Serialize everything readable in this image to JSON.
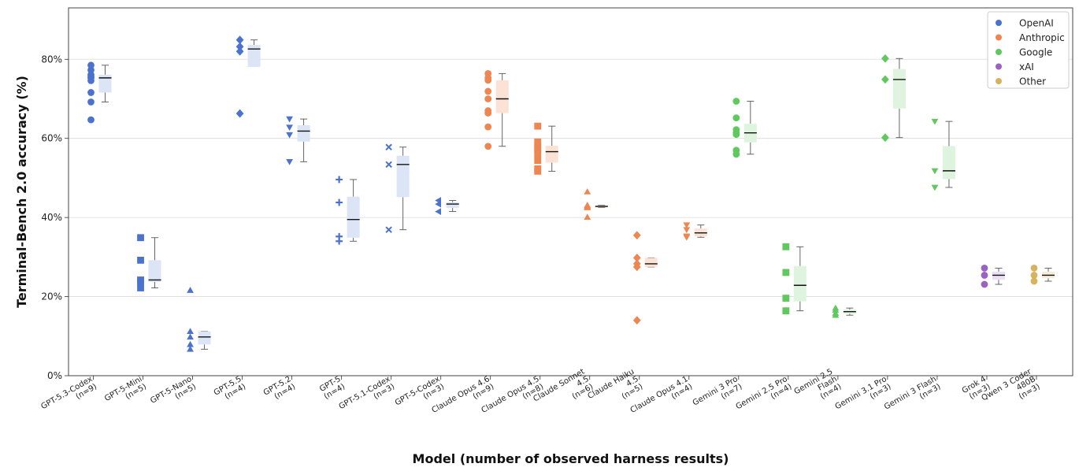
{
  "chart_data": {
    "type": "box+strip",
    "xlabel": "Model (number of observed harness results)",
    "ylabel": "Terminal-Bench 2.0 accuracy (%)",
    "ylim": [
      0,
      93
    ],
    "yticks": [
      0,
      20,
      40,
      60,
      80
    ],
    "ytick_labels": [
      "0%",
      "20%",
      "40%",
      "60%",
      "80%"
    ],
    "grid": "horizontal",
    "legend_position": "top-right",
    "legend": [
      {
        "name": "OpenAI",
        "color": "#4c72d0"
      },
      {
        "name": "Anthropic",
        "color": "#ed8650"
      },
      {
        "name": "Google",
        "color": "#5fc95d"
      },
      {
        "name": "xAI",
        "color": "#9b62c4"
      },
      {
        "name": "Other",
        "color": "#d7b35f"
      }
    ],
    "groups": [
      {
        "tick": [
          "GPT-5.3-Codex",
          "(n=9)"
        ],
        "vendor": "OpenAI",
        "marker": "circle",
        "values": [
          78.5,
          77.3,
          76.1,
          75.3,
          74.6,
          71.6,
          69.2,
          64.7,
          75.7
        ]
      },
      {
        "tick": [
          "GPT-5-Mini",
          "(n=5)"
        ],
        "vendor": "OpenAI",
        "marker": "square",
        "values": [
          34.9,
          29.2,
          24.2,
          23.7,
          22.2
        ]
      },
      {
        "tick": [
          "GPT-5-Nano",
          "(n=5)"
        ],
        "vendor": "OpenAI",
        "marker": "triangle-up",
        "values": [
          21.6,
          11.2,
          9.8,
          7.9,
          6.7
        ]
      },
      {
        "tick": [
          "GPT-5.5",
          "(n=4)"
        ],
        "vendor": "OpenAI",
        "marker": "diamond",
        "values": [
          84.9,
          83.2,
          82.0,
          66.3
        ]
      },
      {
        "tick": [
          "GPT-5.2",
          "(n=4)"
        ],
        "vendor": "OpenAI",
        "marker": "triangle-down",
        "values": [
          64.9,
          62.8,
          60.9,
          54.1
        ]
      },
      {
        "tick": [
          "GPT-5",
          "(n=4)"
        ],
        "vendor": "OpenAI",
        "marker": "plus",
        "values": [
          49.6,
          43.8,
          35.2,
          34.0
        ]
      },
      {
        "tick": [
          "GPT-5.1-Codex",
          "(n=3)"
        ],
        "vendor": "OpenAI",
        "marker": "x",
        "values": [
          57.8,
          53.4,
          36.9
        ]
      },
      {
        "tick": [
          "GPT-5-Codex",
          "(n=3)"
        ],
        "vendor": "OpenAI",
        "marker": "triangle-left",
        "values": [
          44.3,
          43.4,
          41.5
        ]
      },
      {
        "tick": [
          "Claude Opus 4.6",
          "(n=9)"
        ],
        "vendor": "Anthropic",
        "marker": "circle",
        "values": [
          76.4,
          75.3,
          74.7,
          71.9,
          70.0,
          67.0,
          66.4,
          62.9,
          58.0
        ]
      },
      {
        "tick": [
          "Claude Opus 4.5",
          "(n=8)"
        ],
        "vendor": "Anthropic",
        "marker": "square",
        "values": [
          63.1,
          59.1,
          57.8,
          57.3,
          54.4,
          52.3,
          51.7,
          56.0
        ]
      },
      {
        "tick": [
          "Claude Sonnet",
          "4.5",
          "(n=6)"
        ],
        "vendor": "Anthropic",
        "marker": "triangle-up",
        "values": [
          46.5,
          43.1,
          42.9,
          42.7,
          42.5,
          40.1
        ]
      },
      {
        "tick": [
          "Claude Haiku",
          "4.5",
          "(n=5)"
        ],
        "vendor": "Anthropic",
        "marker": "diamond",
        "values": [
          35.5,
          29.8,
          28.3,
          27.5,
          14.0
        ]
      },
      {
        "tick": [
          "Claude Opus 4.1",
          "(n=4)"
        ],
        "vendor": "Anthropic",
        "marker": "triangle-down",
        "values": [
          38.1,
          36.9,
          35.3,
          35.0
        ]
      },
      {
        "tick": [
          "Gemini 3 Pro",
          "(n=7)"
        ],
        "vendor": "Google",
        "marker": "circle",
        "values": [
          69.4,
          65.2,
          62.2,
          61.4,
          57.0,
          56.0,
          61.0
        ]
      },
      {
        "tick": [
          "Gemini 2.5 Pro",
          "(n=4)"
        ],
        "vendor": "Google",
        "marker": "square",
        "values": [
          32.6,
          26.1,
          19.6,
          16.4
        ]
      },
      {
        "tick": [
          "Gemini 2.5",
          "Flash",
          "(n=4)"
        ],
        "vendor": "Google",
        "marker": "triangle-up",
        "values": [
          17.1,
          16.6,
          15.8,
          15.3
        ]
      },
      {
        "tick": [
          "Gemini 3.1 Pro",
          "(n=3)"
        ],
        "vendor": "Google",
        "marker": "diamond",
        "values": [
          80.2,
          74.9,
          60.2
        ]
      },
      {
        "tick": [
          "Gemini 3 Flash",
          "(n=3)"
        ],
        "vendor": "Google",
        "marker": "triangle-down",
        "values": [
          64.3,
          51.8,
          47.6
        ]
      },
      {
        "tick": [
          "Grok 4",
          "(n=3)"
        ],
        "vendor": "xAI",
        "marker": "circle",
        "values": [
          27.2,
          25.4,
          23.1
        ]
      },
      {
        "tick": [
          "Qwen 3 Coder",
          "480B",
          "(n=3)"
        ],
        "vendor": "Other",
        "marker": "circle",
        "values": [
          27.2,
          25.4,
          23.9
        ]
      }
    ]
  }
}
